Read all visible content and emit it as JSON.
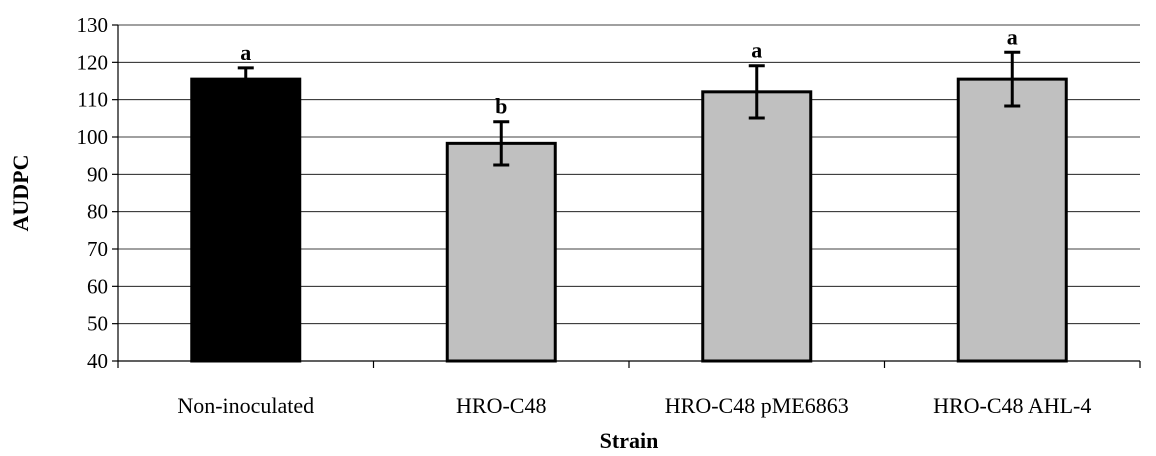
{
  "chart_data": {
    "type": "bar",
    "title": "",
    "xlabel": "Strain",
    "ylabel": "AUDPC",
    "ylim": [
      40,
      130
    ],
    "yticks": [
      40,
      50,
      60,
      70,
      80,
      90,
      100,
      110,
      120,
      130
    ],
    "grid": true,
    "categories": [
      "Non-inoculated",
      "HRO-C48",
      "HRO-C48 pME6863",
      "HRO-C48 AHL-4"
    ],
    "values": [
      115.5,
      98.3,
      112.1,
      115.5
    ],
    "errors": [
      3.0,
      5.8,
      7.0,
      7.2
    ],
    "significance": [
      "a",
      "b",
      "a",
      "a"
    ],
    "bar_colors": [
      "#000000",
      "#c0c0c0",
      "#c0c0c0",
      "#c0c0c0"
    ]
  }
}
